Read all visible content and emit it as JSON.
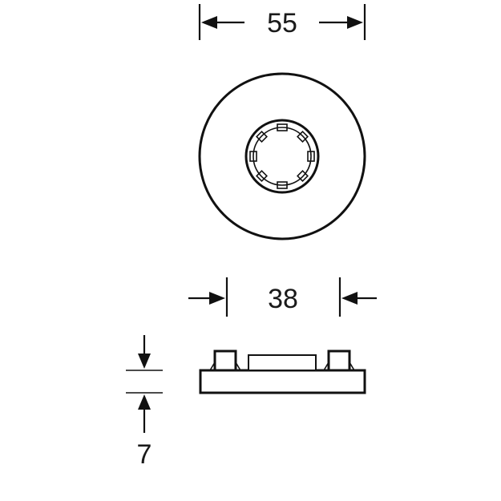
{
  "dimensions": {
    "outer_diameter": "55",
    "inner_width": "38",
    "height": "7"
  },
  "colors": {
    "line": "#111111",
    "background": "#ffffff"
  }
}
